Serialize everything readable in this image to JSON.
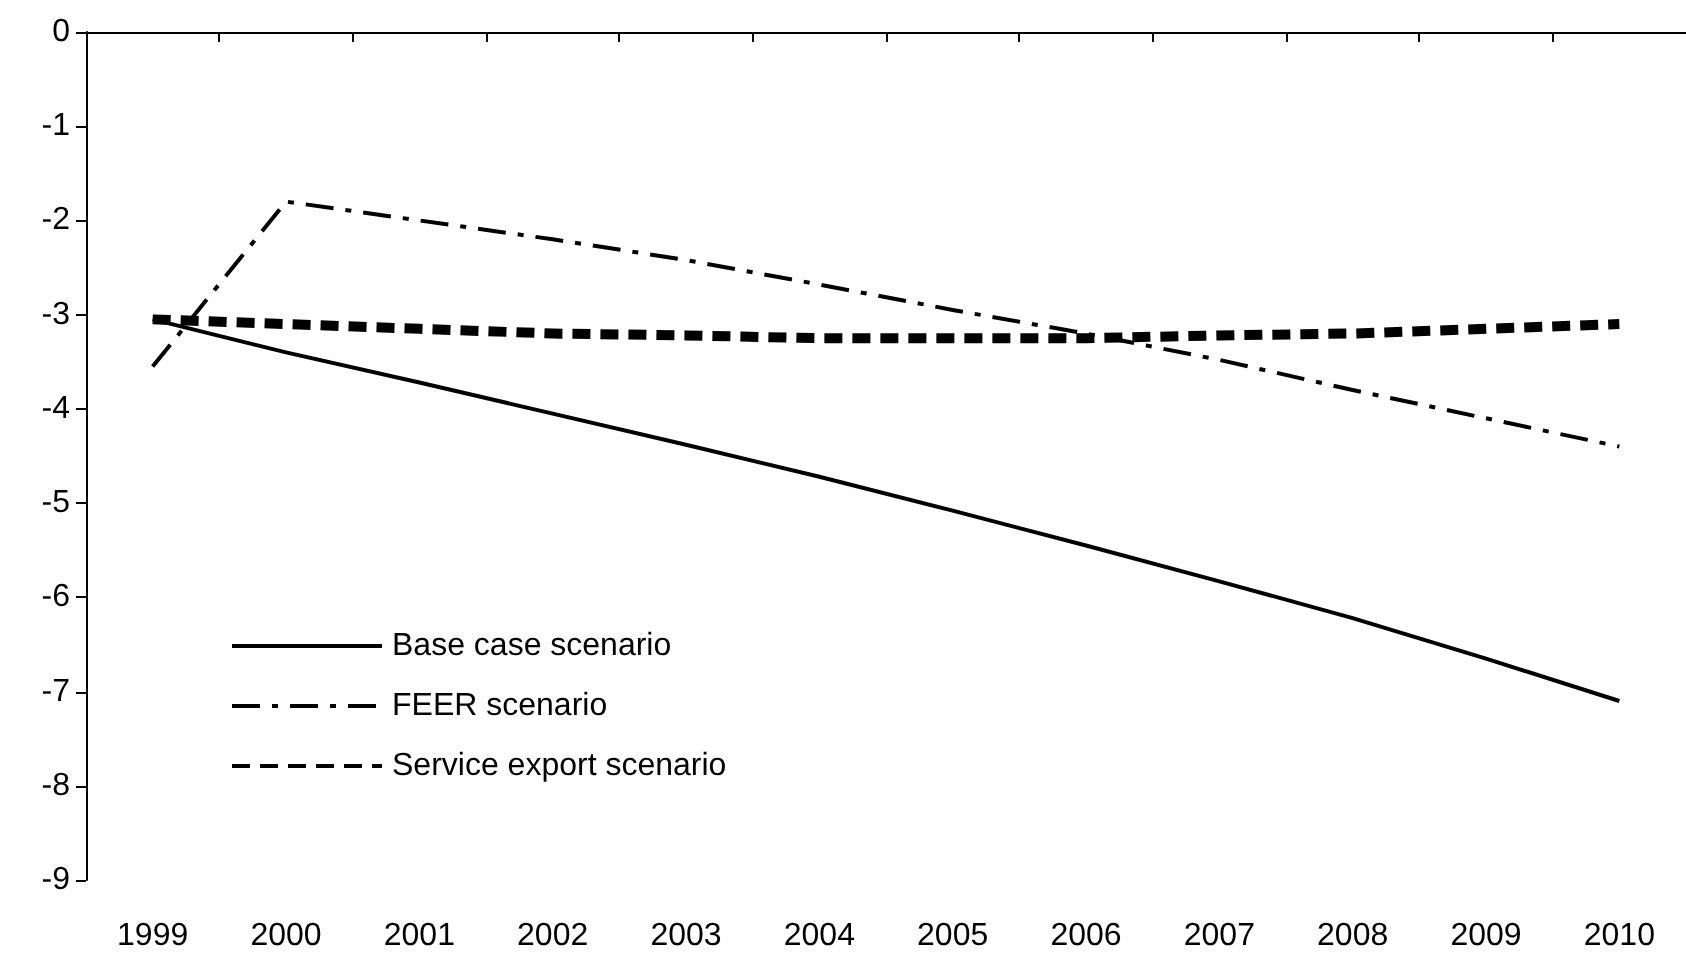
{
  "chart_data": {
    "type": "line",
    "categories": [
      "1999",
      "2000",
      "2001",
      "2002",
      "2003",
      "2004",
      "2005",
      "2006",
      "2007",
      "2008",
      "2009",
      "2010"
    ],
    "series": [
      {
        "name": "Base case scenario",
        "color": "#000000",
        "line_style": "solid",
        "values": [
          -3.05,
          -3.4,
          -3.72,
          -4.05,
          -4.38,
          -4.72,
          -5.08,
          -5.45,
          -5.83,
          -6.22,
          -6.65,
          -7.1
        ]
      },
      {
        "name": "FEER scenario",
        "color": "#000000",
        "line_style": "dashed",
        "values": [
          -3.55,
          -1.8,
          -2.0,
          -2.2,
          -2.42,
          -2.68,
          -2.95,
          -3.2,
          -3.48,
          -3.8,
          -4.1,
          -4.4
        ]
      },
      {
        "name": "Service export scenario",
        "color": "#000000",
        "line_style": "dotted",
        "values": [
          -3.05,
          -3.1,
          -3.15,
          -3.2,
          -3.22,
          -3.25,
          -3.25,
          -3.25,
          -3.22,
          -3.2,
          -3.15,
          -3.1
        ]
      }
    ],
    "ylim": [
      -9,
      0
    ],
    "yticks": [
      -9,
      -8,
      -7,
      -6,
      -5,
      -4,
      -3,
      -2,
      -1,
      0
    ],
    "grid": false,
    "legend": "bottom left",
    "marker": "none"
  }
}
